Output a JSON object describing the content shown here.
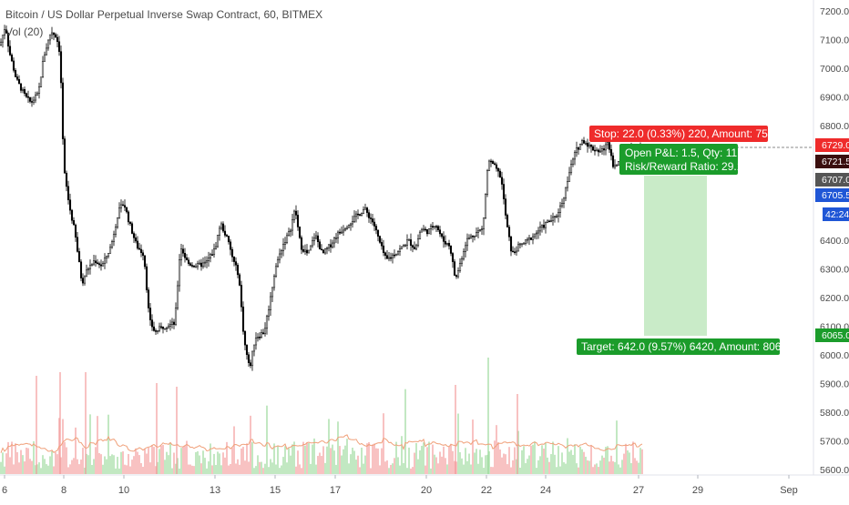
{
  "header": {
    "title": "Bitcoin / US Dollar Perpetual Inverse Swap Contract, 60, BITMEX",
    "volume_label": "Vol (20)"
  },
  "position": {
    "stop_label": "Stop: 22.0 (0.33%) 220, Amount: 758",
    "pnl_label": "Open P&L: 1.5, Qty: 11",
    "risk_label": "Risk/Reward Ratio: 29.18",
    "target_label": "Target: 642.0 (9.57%) 6420, Amount: 8062",
    "entry": 6707.0,
    "stop": 6729.0,
    "target": 6065.0
  },
  "price_axis": {
    "ticks": [
      "7200.0",
      "7100.0",
      "7000.0",
      "6900.0",
      "6800.0",
      "6400.0",
      "6300.0",
      "6200.0",
      "6100.0",
      "6000.0",
      "5900.0",
      "5800.0",
      "5700.0",
      "5600.0"
    ],
    "tag_stop": "6729.0",
    "tag_current": "6721.5",
    "tag_entry": "6707.0",
    "tag_last": "6705.5",
    "tag_timer": "42:24",
    "tag_target": "6065.0"
  },
  "time_axis": {
    "labels": [
      "6",
      "8",
      "10",
      "13",
      "15",
      "17",
      "20",
      "22",
      "24",
      "27",
      "29",
      "Sep"
    ]
  },
  "colors": {
    "up": "#000000",
    "down": "#000000",
    "stop_red": "#ef2b2b",
    "profit_green": "#1b9c2b",
    "profit_zone": "#c9ebc8",
    "volume_up": "#a8dfa8",
    "volume_down": "#f4a7a7",
    "volume_ma": "#f0a07a",
    "tag_blue": "#1f56d6"
  },
  "chart_data": {
    "type": "line",
    "title": "Bitcoin / US Dollar Perpetual Inverse Swap Contract, 60, BITMEX",
    "ylim": [
      5570,
      7250
    ],
    "x": [
      "6",
      "8",
      "10",
      "13",
      "15",
      "17",
      "20",
      "22",
      "24",
      "27"
    ],
    "series": [
      {
        "values": [
          7130,
          6870,
          7080,
          6150,
          6350,
          5980,
          6280,
          6440,
          6680,
          6760
        ]
      }
    ],
    "indicators": [
      "Vol (20)"
    ],
    "grid": false,
    "scale": "linear"
  }
}
